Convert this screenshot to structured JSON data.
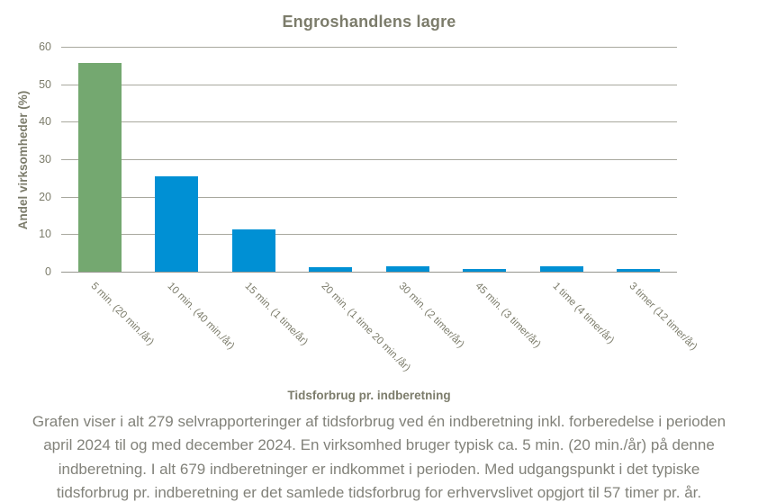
{
  "chart_data": {
    "type": "bar",
    "title": "Engroshandlens lagre",
    "xlabel": "Tidsforbrug pr. indberetning",
    "ylabel": "Andel virksomheder  (%)",
    "categories": [
      "5 min. (20 min./år)",
      "10 min. (40 min./år)",
      "15 min. (1 time/år)",
      "20 min. (1 time 20 min./år)",
      "30 min. (2 timer/år)",
      "45 min. (3 timer/år)",
      "1 time (4 timer/år)",
      "3 timer (12 timer/år)"
    ],
    "values": [
      55.7,
      25.4,
      11.4,
      1.1,
      1.4,
      0.7,
      1.4,
      0.8
    ],
    "ylim": [
      0,
      60
    ],
    "yticks": [
      0,
      10,
      20,
      30,
      40,
      50,
      60
    ],
    "grid": true,
    "legend": "none",
    "bar_colors": [
      "#74A870",
      "#0090D4",
      "#0090D4",
      "#0090D4",
      "#0090D4",
      "#0090D4",
      "#0090D4",
      "#0090D4"
    ]
  },
  "caption": "Grafen viser i alt 279 selvrapporteringer  af tidsforbrug  ved én indberetning  inkl. forberedelse i perioden april 2024 til og med december 2024. En virksomhed bruger typisk ca. 5 min. (20 min./år) på denne indberetning.  I alt 679 indberetninger  er indkommet i perioden.  Med udgangspunkt i det typiske tidsforbrug  pr. indberetning  er det samlede tidsforbrug  for erhvervslivet  opgjort til 57 timer pr. år.",
  "colors": {
    "text": "#7C7C6B",
    "caption_text": "#82827A",
    "grid": "#A8A89E",
    "axis": "#96968F",
    "highlight_bar": "#74A870",
    "default_bar": "#0090D4"
  }
}
